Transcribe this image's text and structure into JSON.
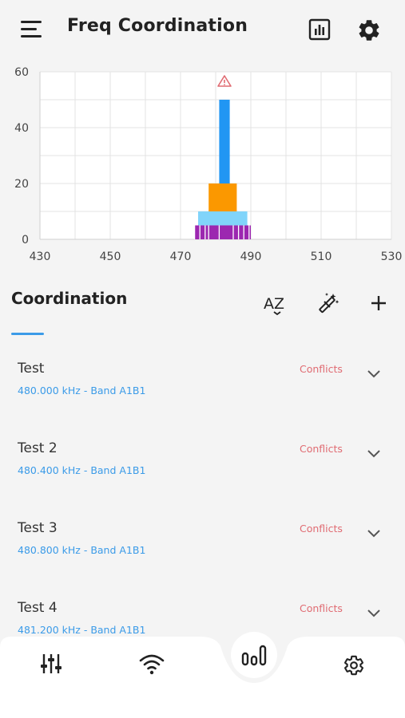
{
  "header": {
    "title": "Freq Coordination",
    "icons": [
      "menu-icon",
      "chart-icon",
      "gear-icon"
    ]
  },
  "chart_data": {
    "type": "bar",
    "x_ticks": [
      "430",
      "450",
      "470",
      "490",
      "510",
      "530"
    ],
    "y_ticks": [
      "0",
      "20",
      "40",
      "60"
    ],
    "xlim": [
      430,
      530
    ],
    "ylim": [
      0,
      60
    ],
    "grid": true,
    "warning_icon": "warning-triangle-icon",
    "bars": [
      {
        "x_start": 481,
        "x_end": 484,
        "y_bottom": 20,
        "y_top": 50,
        "color": "#2196f3"
      },
      {
        "x_start": 478,
        "x_end": 486,
        "y_bottom": 10,
        "y_top": 20,
        "color": "#fb9800"
      },
      {
        "x_start": 475,
        "x_end": 489,
        "y_bottom": 5,
        "y_top": 10,
        "color": "#81d4fa"
      },
      {
        "x_start": 474,
        "x_end": 490,
        "y_bottom": 0,
        "y_top": 5,
        "color": "#9c27b0"
      }
    ],
    "ticks_marks": [
      474,
      475.5,
      477,
      478,
      481,
      485,
      486.5,
      488,
      489.5
    ]
  },
  "coordination": {
    "title": "Coordination",
    "tools": [
      "sort-az-icon",
      "magic-wand-icon",
      "add-icon"
    ],
    "sort_label": "AZ"
  },
  "items": [
    {
      "name": "Test",
      "freq": "480.000 kHz - Band A1B1",
      "status": "Conflicts"
    },
    {
      "name": "Test 2",
      "freq": "480.400 kHz - Band A1B1",
      "status": "Conflicts"
    },
    {
      "name": "Test 3",
      "freq": "480.800 kHz - Band A1B1",
      "status": "Conflicts"
    },
    {
      "name": "Test 4",
      "freq": "481.200 kHz - Band A1B1",
      "status": "Conflicts"
    }
  ],
  "bottom_nav": {
    "icons": [
      "mixer-sliders-icon",
      "wifi-icon",
      "freq-bars-icon",
      "settings-icon"
    ],
    "active": "freq-bars-icon"
  },
  "colors": {
    "accent": "#3b9be8",
    "conflict": "#e06b72",
    "bar_blue": "#2196f3",
    "bar_orange": "#fb9800",
    "bar_lightblue": "#81d4fa",
    "bar_purple": "#9c27b0"
  }
}
